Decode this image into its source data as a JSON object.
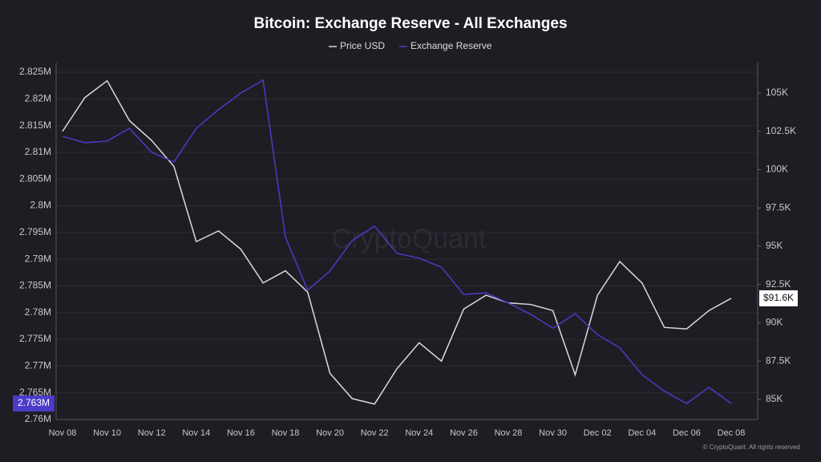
{
  "chart_data": {
    "type": "line",
    "title": "Bitcoin: Exchange Reserve - All Exchanges",
    "watermark": "CryptoQuant",
    "footer": "© CryptoQuant. All rights reserved",
    "categories": [
      "Nov 08",
      null,
      "Nov 10",
      null,
      "Nov 12",
      null,
      "Nov 14",
      null,
      "Nov 16",
      null,
      "Nov 18",
      null,
      "Nov 20",
      null,
      "Nov 22",
      null,
      "Nov 24",
      null,
      "Nov 26",
      null,
      "Nov 28",
      null,
      "Nov 30",
      null,
      "Dec 02",
      null,
      "Dec 04",
      null,
      "Dec 06",
      null,
      "Dec 08"
    ],
    "series": [
      {
        "name": "Price USD",
        "color": "#d9d9de",
        "axis": "y2",
        "values": [
          102500,
          104700,
          105800,
          103200,
          101900,
          100200,
          95300,
          96000,
          94800,
          92600,
          93400,
          92000,
          86700,
          85050,
          84700,
          87000,
          88700,
          87500,
          90900,
          91800,
          91300,
          91200,
          90800,
          86600,
          91800,
          94000,
          92600,
          89700,
          89600,
          90800,
          91600
        ],
        "value_labels": [
          null,
          null,
          null,
          null,
          null,
          null,
          null,
          null,
          null,
          null,
          null,
          null,
          null,
          null,
          null,
          null,
          null,
          null,
          null,
          null,
          null,
          null,
          null,
          null,
          null,
          null,
          null,
          null,
          null,
          null,
          "$91.6K"
        ]
      },
      {
        "name": "Exchange Reserve",
        "color": "#4b3bc8",
        "values": [
          2.813,
          2.8118,
          2.8121,
          2.8145,
          2.81,
          2.8082,
          2.8145,
          2.818,
          2.8211,
          2.8235,
          2.7941,
          2.7842,
          2.7878,
          2.7935,
          2.7962,
          2.7911,
          2.7902,
          2.7885,
          2.7834,
          2.7837,
          2.7818,
          2.7797,
          2.7771,
          2.7798,
          2.7759,
          2.7734,
          2.7684,
          2.7653,
          2.763,
          2.766,
          2.763
        ],
        "value_labels": [
          null,
          null,
          null,
          null,
          null,
          null,
          null,
          null,
          null,
          null,
          null,
          null,
          null,
          null,
          null,
          null,
          null,
          null,
          null,
          null,
          null,
          null,
          null,
          null,
          null,
          null,
          null,
          null,
          null,
          null,
          "2.763M"
        ]
      }
    ],
    "ylim": [
      2.76,
      2.825
    ],
    "yticks": [
      {
        "value": 2.76,
        "label": "2.76M"
      },
      {
        "value": 2.765,
        "label": "2.765M"
      },
      {
        "value": 2.77,
        "label": "2.77M"
      },
      {
        "value": 2.775,
        "label": "2.775M"
      },
      {
        "value": 2.78,
        "label": "2.78M"
      },
      {
        "value": 2.785,
        "label": "2.785M"
      },
      {
        "value": 2.79,
        "label": "2.79M"
      },
      {
        "value": 2.795,
        "label": "2.795M"
      },
      {
        "value": 2.8,
        "label": "2.8M"
      },
      {
        "value": 2.805,
        "label": "2.805M"
      },
      {
        "value": 2.81,
        "label": "2.81M"
      },
      {
        "value": 2.815,
        "label": "2.815M"
      },
      {
        "value": 2.82,
        "label": "2.82M"
      },
      {
        "value": 2.825,
        "label": "2.825M"
      }
    ],
    "y2lim": [
      83690,
      106360
    ],
    "y2ticks": [
      {
        "value": 85000,
        "label": "85K"
      },
      {
        "value": 87500,
        "label": "87.5K"
      },
      {
        "value": 90000,
        "label": "90K"
      },
      {
        "value": 92500,
        "label": "92.5K"
      },
      {
        "value": 95000,
        "label": "95K"
      },
      {
        "value": 97500,
        "label": "97.5K"
      },
      {
        "value": 100000,
        "label": "100K"
      },
      {
        "value": 102500,
        "label": "102.5K"
      },
      {
        "value": 105000,
        "label": "105K"
      }
    ],
    "grid": true
  }
}
